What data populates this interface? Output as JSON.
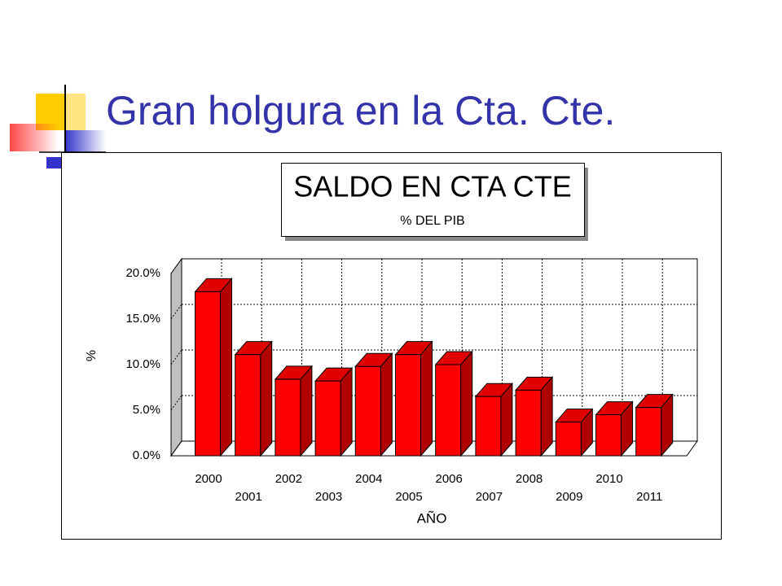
{
  "slide_title": "Gran holgura en la Cta. Cte.",
  "chart_data": {
    "type": "bar3d",
    "title": "SALDO EN CTA CTE",
    "subtitle": "% DEL PIB",
    "x_label": "AÑO",
    "y_label": "%",
    "categories": [
      "2000",
      "2001",
      "2002",
      "2003",
      "2004",
      "2005",
      "2006",
      "2007",
      "2008",
      "2009",
      "2010",
      "2011"
    ],
    "values": [
      18.0,
      11.1,
      8.4,
      8.2,
      9.8,
      11.1,
      10.0,
      6.5,
      7.2,
      3.7,
      4.5,
      5.3
    ],
    "color": "#ff0000",
    "ylim": [
      0,
      20
    ],
    "yticks": [
      {
        "value": 0,
        "label": "0.0%"
      },
      {
        "value": 5,
        "label": "5.0%"
      },
      {
        "value": 10,
        "label": "10.0%"
      },
      {
        "value": 15,
        "label": "15.0%"
      },
      {
        "value": 20,
        "label": "20.0%"
      }
    ],
    "grid": true
  }
}
